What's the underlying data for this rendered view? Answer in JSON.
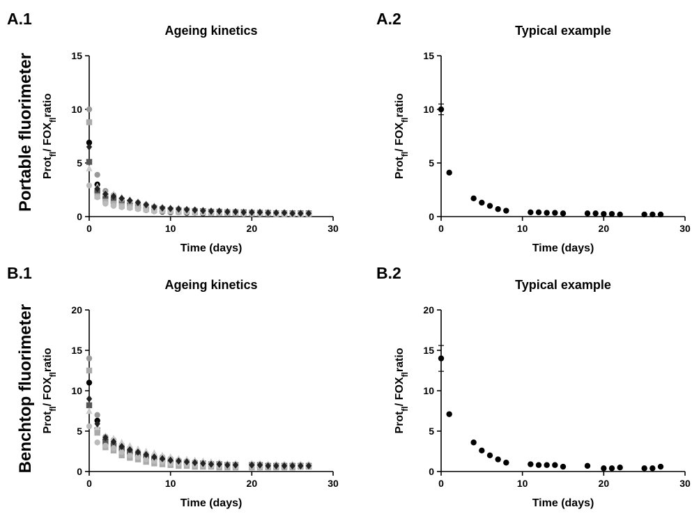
{
  "row_labels": [
    "Portable fluorimeter",
    "Benchtop fluorimeter"
  ],
  "chart_data": [
    {
      "id": "A1",
      "panel_label": "A.1",
      "type": "scatter",
      "title": "Ageing kinetics",
      "xlabel": "Time (days)",
      "ylabel": {
        "base": "Prot",
        "sub1": "fl",
        "mid": "/ FOX",
        "sub2": "fl",
        "end": "ratio"
      },
      "xlim": [
        0,
        30
      ],
      "ylim": [
        0,
        15
      ],
      "xticks": [
        0,
        10,
        20,
        30
      ],
      "yticks": [
        0,
        5,
        10,
        15
      ],
      "series": [
        {
          "color": "#000000",
          "marker": "circle",
          "x": [
            0,
            1,
            2,
            3,
            4,
            5,
            6,
            7,
            8,
            9,
            10,
            11,
            12,
            13,
            14,
            15,
            16,
            17,
            18,
            19,
            20,
            21,
            22,
            23,
            24,
            25,
            26,
            27
          ],
          "y": [
            6.9,
            3.0,
            1.7,
            1.3,
            0.9,
            1.1,
            0.8,
            0.6,
            0.5,
            0.45,
            0.4,
            0.4,
            0.35,
            0.35,
            0.3,
            0.3,
            0.3,
            0.3,
            0.3,
            0.25,
            0.25,
            0.25,
            0.2,
            0.2,
            0.2,
            0.2,
            0.2,
            0.2
          ]
        },
        {
          "color": "#555555",
          "marker": "square",
          "x": [
            0,
            1,
            2,
            3,
            4,
            5,
            6,
            7,
            8,
            9,
            10,
            11,
            12,
            13,
            14,
            15,
            16,
            17,
            18,
            19,
            20,
            21,
            22,
            23,
            24,
            25,
            26,
            27
          ],
          "y": [
            5.1,
            2.4,
            1.9,
            1.6,
            1.5,
            1.3,
            1.0,
            0.9,
            0.8,
            0.7,
            0.6,
            0.6,
            0.55,
            0.5,
            0.5,
            0.45,
            0.45,
            0.4,
            0.4,
            0.4,
            0.35,
            0.35,
            0.35,
            0.3,
            0.3,
            0.3,
            0.3,
            0.3
          ]
        },
        {
          "color": "#999999",
          "marker": "circle",
          "x": [
            0,
            1,
            2,
            3,
            4,
            5,
            6,
            7,
            8,
            9,
            10,
            11,
            12,
            13,
            14,
            15,
            16,
            17,
            18,
            19,
            20,
            21,
            22,
            23,
            24,
            25,
            26,
            27
          ],
          "y": [
            10.0,
            3.9,
            2.4,
            2.0,
            1.6,
            1.4,
            1.3,
            1.1,
            0.9,
            0.8,
            0.7,
            0.7,
            0.6,
            0.6,
            0.55,
            0.5,
            0.5,
            0.45,
            0.45,
            0.4,
            0.4,
            0.4,
            0.35,
            0.35,
            0.35,
            0.3,
            0.3,
            0.3
          ]
        },
        {
          "color": "#aaaaaa",
          "marker": "square",
          "x": [
            0,
            1,
            2,
            3,
            4,
            5,
            6,
            7,
            8,
            9,
            10,
            11,
            12,
            13,
            14,
            15,
            16,
            17,
            18,
            19,
            20,
            21,
            22,
            23,
            24,
            25,
            26,
            27
          ],
          "y": [
            8.8,
            1.9,
            1.4,
            1.2,
            1.0,
            0.9,
            0.8,
            0.7,
            0.6,
            0.55,
            0.5,
            0.45,
            0.45,
            0.4,
            0.4,
            0.35,
            0.35,
            0.35,
            0.3,
            0.3,
            0.3,
            0.3,
            0.3,
            0.25,
            0.25,
            0.25,
            0.25,
            0.25
          ]
        },
        {
          "color": "#bbbbbb",
          "marker": "circle",
          "x": [
            0,
            1,
            2,
            3,
            4,
            5,
            6,
            7,
            8,
            9,
            10,
            11,
            12,
            13,
            14,
            15,
            16,
            17,
            18,
            19,
            20,
            21,
            22,
            23,
            24,
            25,
            26,
            27
          ],
          "y": [
            2.9,
            1.8,
            1.2,
            1.0,
            0.9,
            0.8,
            0.7,
            0.6,
            0.5,
            0.5,
            0.45,
            0.4,
            0.4,
            0.35,
            0.35,
            0.3,
            0.3,
            0.3,
            0.3,
            0.25,
            0.25,
            0.25,
            0.25,
            0.2,
            0.2,
            0.2,
            0.2,
            0.2
          ]
        },
        {
          "color": "#cccccc",
          "marker": "triangle",
          "x": [
            0,
            1,
            2,
            3,
            4,
            5,
            6,
            7,
            8,
            9,
            10,
            11,
            12,
            13,
            14,
            15,
            16,
            17,
            18,
            19,
            20,
            21,
            22,
            23,
            24,
            25,
            26,
            27
          ],
          "y": [
            4.5,
            2.8,
            2.2,
            2.1,
            1.8,
            1.6,
            1.4,
            1.2,
            1.0,
            0.9,
            0.8,
            0.8,
            0.7,
            0.65,
            0.6,
            0.55,
            0.5,
            0.5,
            0.45,
            0.45,
            0.4,
            0.4,
            0.4,
            0.35,
            0.35,
            0.35,
            0.3,
            0.3
          ]
        },
        {
          "color": "#222222",
          "marker": "diamond",
          "x": [
            0,
            1,
            2,
            3,
            4,
            5,
            6,
            7,
            8,
            9,
            10,
            11,
            12,
            13,
            14,
            15,
            16,
            17,
            18,
            19,
            20,
            21,
            22,
            23,
            24,
            25,
            26,
            27
          ],
          "y": [
            6.5,
            2.6,
            2.1,
            1.9,
            1.7,
            1.5,
            1.3,
            1.1,
            0.9,
            0.8,
            0.75,
            0.7,
            0.65,
            0.6,
            0.55,
            0.5,
            0.5,
            0.45,
            0.45,
            0.4,
            0.4,
            0.4,
            0.35,
            0.35,
            0.35,
            0.3,
            0.3,
            0.3
          ]
        }
      ]
    },
    {
      "id": "A2",
      "panel_label": "A.2",
      "type": "scatter",
      "title": "Typical example",
      "xlabel": "Time (days)",
      "ylabel": {
        "base": "Prot",
        "sub1": "fl",
        "mid": "/ FOX",
        "sub2": "fl",
        "end": "ratio"
      },
      "xlim": [
        0,
        30
      ],
      "ylim": [
        0,
        15
      ],
      "xticks": [
        0,
        10,
        20,
        30
      ],
      "yticks": [
        0,
        5,
        10,
        15
      ],
      "series": [
        {
          "color": "#000000",
          "marker": "circle",
          "x": [
            0,
            1,
            4,
            5,
            6,
            7,
            8,
            11,
            12,
            13,
            14,
            15,
            18,
            19,
            20,
            21,
            22,
            25,
            26,
            27
          ],
          "y": [
            10.0,
            4.1,
            1.7,
            1.3,
            1.0,
            0.7,
            0.55,
            0.4,
            0.4,
            0.35,
            0.35,
            0.3,
            0.3,
            0.3,
            0.25,
            0.25,
            0.2,
            0.2,
            0.2,
            0.2
          ],
          "err": [
            0.5,
            0,
            0,
            0,
            0,
            0,
            0,
            0,
            0,
            0,
            0,
            0,
            0,
            0,
            0,
            0,
            0,
            0,
            0,
            0
          ]
        }
      ]
    },
    {
      "id": "B1",
      "panel_label": "B.1",
      "type": "scatter",
      "title": "Ageing kinetics",
      "xlabel": "Time (days)",
      "ylabel": {
        "base": "Prot",
        "sub1": "fl",
        "mid": "/ FOX",
        "sub2": "fl",
        "end": "ratio"
      },
      "xlim": [
        0,
        30
      ],
      "ylim": [
        0,
        20
      ],
      "xticks": [
        0,
        10,
        20,
        30
      ],
      "yticks": [
        0,
        5,
        10,
        15,
        20
      ],
      "series": [
        {
          "color": "#000000",
          "marker": "circle",
          "x": [
            0,
            1,
            2,
            3,
            4,
            5,
            6,
            7,
            8,
            9,
            10,
            11,
            12,
            13,
            14,
            15,
            16,
            17,
            18,
            20,
            21,
            22,
            23,
            24,
            25,
            26,
            27
          ],
          "y": [
            11.0,
            6.3,
            4.0,
            3.4,
            2.5,
            2.2,
            1.9,
            1.6,
            1.4,
            1.2,
            1.0,
            0.9,
            0.9,
            0.8,
            0.8,
            0.7,
            0.7,
            0.7,
            0.6,
            0.5,
            0.5,
            0.5,
            0.5,
            0.5,
            0.5,
            0.6,
            0.7
          ]
        },
        {
          "color": "#555555",
          "marker": "square",
          "x": [
            0,
            1,
            2,
            3,
            4,
            5,
            6,
            7,
            8,
            9,
            10,
            11,
            12,
            13,
            14,
            15,
            16,
            17,
            18,
            20,
            21,
            22,
            23,
            24,
            25,
            26,
            27
          ],
          "y": [
            8.2,
            5.1,
            3.6,
            3.2,
            2.8,
            2.4,
            2.1,
            1.9,
            1.7,
            1.5,
            1.3,
            1.2,
            1.1,
            1.0,
            1.0,
            0.9,
            0.9,
            0.8,
            0.8,
            0.8,
            0.8,
            0.7,
            0.7,
            0.7,
            0.7,
            0.7,
            0.7
          ]
        },
        {
          "color": "#999999",
          "marker": "circle",
          "x": [
            0,
            1,
            2,
            3,
            4,
            5,
            6,
            7,
            8,
            9,
            10,
            11,
            12,
            13,
            14,
            15,
            16,
            17,
            18,
            20,
            21,
            22,
            23,
            24,
            25,
            26,
            27
          ],
          "y": [
            14.0,
            7.0,
            4.3,
            3.9,
            3.3,
            2.9,
            2.5,
            2.2,
            2.0,
            1.8,
            1.6,
            1.4,
            1.3,
            1.2,
            1.1,
            1.0,
            1.0,
            0.9,
            0.9,
            0.9,
            0.9,
            0.8,
            0.8,
            0.8,
            0.8,
            0.8,
            0.8
          ]
        },
        {
          "color": "#aaaaaa",
          "marker": "square",
          "x": [
            0,
            1,
            2,
            3,
            4,
            5,
            6,
            7,
            8,
            9,
            10,
            11,
            12,
            13,
            14,
            15,
            16,
            17,
            18,
            20,
            21,
            22,
            23,
            24,
            25,
            26,
            27
          ],
          "y": [
            12.5,
            4.8,
            3.0,
            2.6,
            2.0,
            1.7,
            1.5,
            1.2,
            1.0,
            0.9,
            0.8,
            0.7,
            0.7,
            0.6,
            0.6,
            0.6,
            0.5,
            0.5,
            0.5,
            0.5,
            0.5,
            0.5,
            0.5,
            0.5,
            0.5,
            0.6,
            0.6
          ]
        },
        {
          "color": "#bbbbbb",
          "marker": "circle",
          "x": [
            0,
            1,
            2,
            3,
            4,
            5,
            6,
            7,
            8,
            9,
            10,
            11,
            12,
            13,
            14,
            15,
            16,
            17,
            18,
            20,
            21,
            22,
            23,
            24,
            25,
            26,
            27
          ],
          "y": [
            5.6,
            3.6,
            3.2,
            2.9,
            2.4,
            2.0,
            1.8,
            1.5,
            1.3,
            1.2,
            1.0,
            1.0,
            0.9,
            0.8,
            0.8,
            0.7,
            0.7,
            0.7,
            0.6,
            0.6,
            0.6,
            0.6,
            0.6,
            0.6,
            0.6,
            0.6,
            0.6
          ]
        },
        {
          "color": "#cccccc",
          "marker": "triangle",
          "x": [
            0,
            1,
            2,
            3,
            4,
            5,
            6,
            7,
            8,
            9,
            10,
            11,
            12,
            13,
            14,
            15,
            16,
            17,
            18,
            20,
            21,
            22,
            23,
            24,
            25,
            26,
            27
          ],
          "y": [
            7.5,
            5.5,
            4.4,
            4.1,
            3.6,
            3.2,
            2.8,
            2.5,
            2.3,
            2.0,
            1.8,
            1.6,
            1.5,
            1.4,
            1.3,
            1.2,
            1.1,
            1.0,
            1.0,
            1.0,
            1.0,
            0.9,
            0.9,
            0.9,
            0.9,
            0.9,
            0.9
          ]
        },
        {
          "color": "#222222",
          "marker": "diamond",
          "x": [
            0,
            1,
            2,
            3,
            4,
            5,
            6,
            7,
            8,
            9,
            10,
            11,
            12,
            13,
            14,
            15,
            16,
            17,
            18,
            20,
            21,
            22,
            23,
            24,
            25,
            26,
            27
          ],
          "y": [
            9.0,
            5.9,
            4.2,
            3.7,
            3.1,
            2.7,
            2.4,
            2.1,
            1.8,
            1.6,
            1.4,
            1.3,
            1.2,
            1.1,
            1.0,
            0.9,
            0.9,
            0.8,
            0.8,
            0.8,
            0.8,
            0.7,
            0.7,
            0.7,
            0.7,
            0.7,
            0.7
          ]
        }
      ]
    },
    {
      "id": "B2",
      "panel_label": "B.2",
      "type": "scatter",
      "title": "Typical example",
      "xlabel": "Time (days)",
      "ylabel": {
        "base": "Prot",
        "sub1": "fl",
        "mid": "/ FOX",
        "sub2": "fl",
        "end": "ratio"
      },
      "xlim": [
        0,
        30
      ],
      "ylim": [
        0,
        20
      ],
      "xticks": [
        0,
        10,
        20,
        30
      ],
      "yticks": [
        0,
        5,
        10,
        15,
        20
      ],
      "series": [
        {
          "color": "#000000",
          "marker": "circle",
          "x": [
            0,
            1,
            4,
            5,
            6,
            7,
            8,
            11,
            12,
            13,
            14,
            15,
            18,
            20,
            21,
            22,
            25,
            26,
            27
          ],
          "y": [
            14.0,
            7.1,
            3.6,
            2.6,
            2.0,
            1.5,
            1.1,
            0.9,
            0.8,
            0.8,
            0.8,
            0.6,
            0.7,
            0.4,
            0.4,
            0.5,
            0.4,
            0.4,
            0.6
          ],
          "err": [
            1.6,
            0,
            0,
            0,
            0,
            0,
            0,
            0,
            0,
            0,
            0,
            0,
            0,
            0,
            0,
            0,
            0,
            0,
            0
          ]
        }
      ]
    }
  ]
}
